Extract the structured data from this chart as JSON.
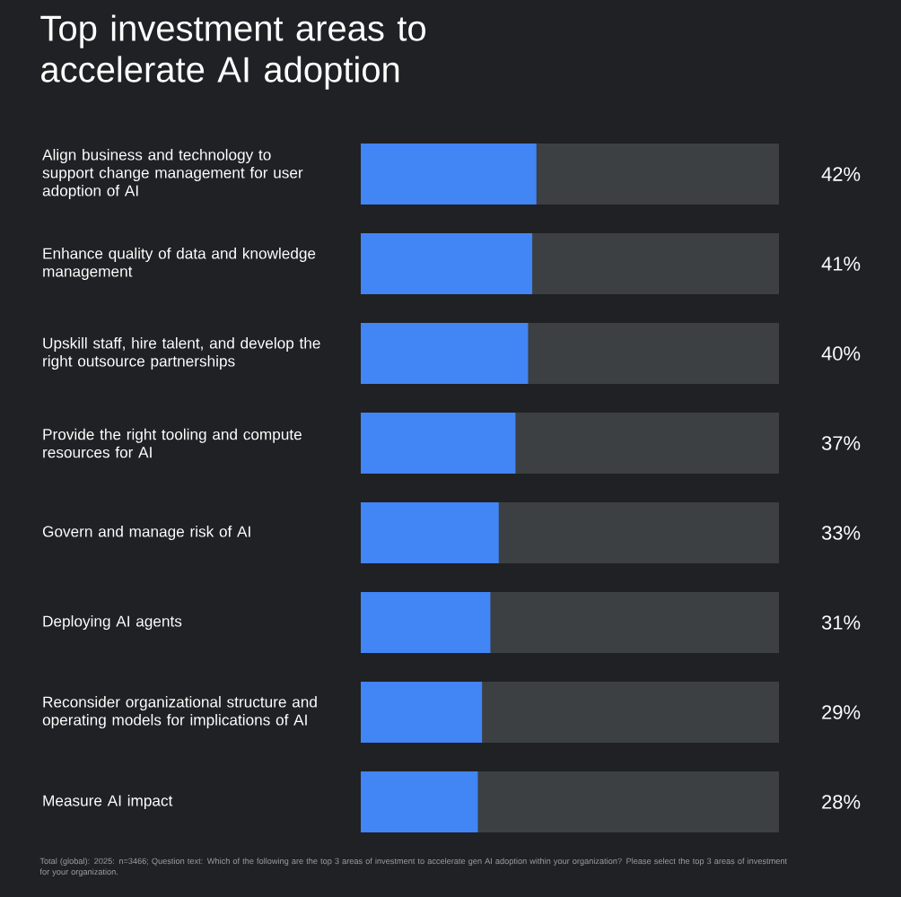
{
  "chart_data": {
    "type": "bar",
    "orientation": "horizontal",
    "title": "Top investment areas to accelerate AI adoption",
    "categories": [
      "Align business and technology to support change management for user adoption of AI",
      "Enhance quality of data and knowledge management",
      "Upskill staff, hire talent, and develop the right outsource partnerships",
      "Provide the right tooling and compute resources for AI",
      "Govern and manage risk of AI",
      "Deploying AI agents",
      "Reconsider organizational structure and operating models for implications of AI",
      "Measure AI impact"
    ],
    "values": [
      42,
      41,
      40,
      37,
      33,
      31,
      29,
      28
    ],
    "value_labels": [
      "42%",
      "41%",
      "40%",
      "37%",
      "33%",
      "31%",
      "29%",
      "28%"
    ],
    "color": "#4285f4",
    "xlim": [
      0,
      100
    ],
    "tick_labels": "y",
    "annotations": [
      "Total (global): 2025: n=3466; Question text: Which of the following are the top 3 areas of investment to accelerate gen AI adoption within your organization? Please select the top 3 areas of investment for your organization."
    ]
  }
}
